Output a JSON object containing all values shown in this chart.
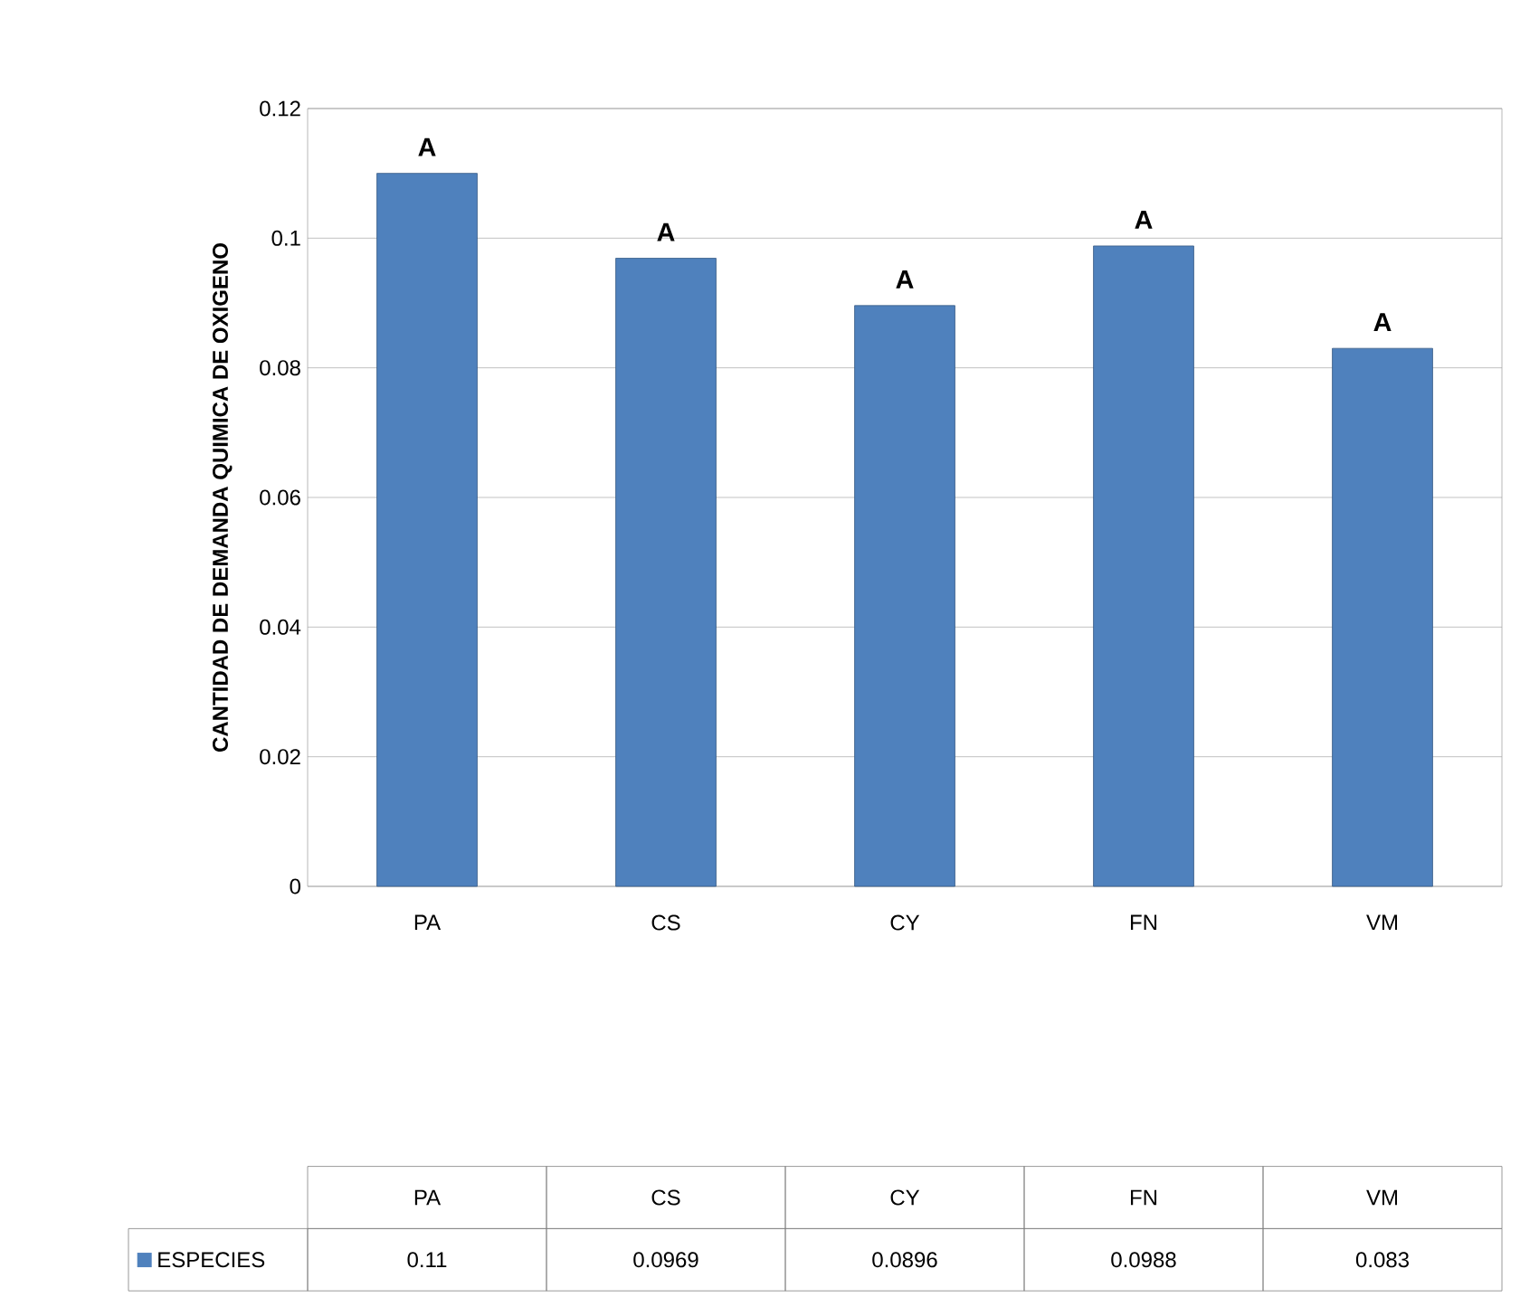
{
  "chart_data": {
    "type": "bar",
    "ylabel": "CANTIDAD DE DEMANDA QUIMICA DE OXIGENO",
    "categories": [
      "PA",
      "CS",
      "CY",
      "FN",
      "VM"
    ],
    "series": [
      {
        "name": "ESPECIES",
        "color": "#4f81bd",
        "values": [
          0.11,
          0.0969,
          0.0896,
          0.0988,
          0.083
        ]
      }
    ],
    "ylim": [
      0,
      0.12
    ],
    "yticks": [
      0,
      0.02,
      0.04,
      0.06,
      0.08,
      0.1,
      0.12
    ],
    "grid": "y",
    "data_labels": true,
    "legend": "bottom",
    "annotations": [
      {
        "text": "A",
        "x": "PA",
        "y": 0.11
      },
      {
        "text": "A",
        "x": "CS",
        "y": 0.0969
      },
      {
        "text": "A",
        "x": "CY",
        "y": 0.0896
      },
      {
        "text": "A",
        "x": "FN",
        "y": 0.0988
      },
      {
        "text": "A",
        "x": "VM",
        "y": 0.083
      }
    ]
  }
}
